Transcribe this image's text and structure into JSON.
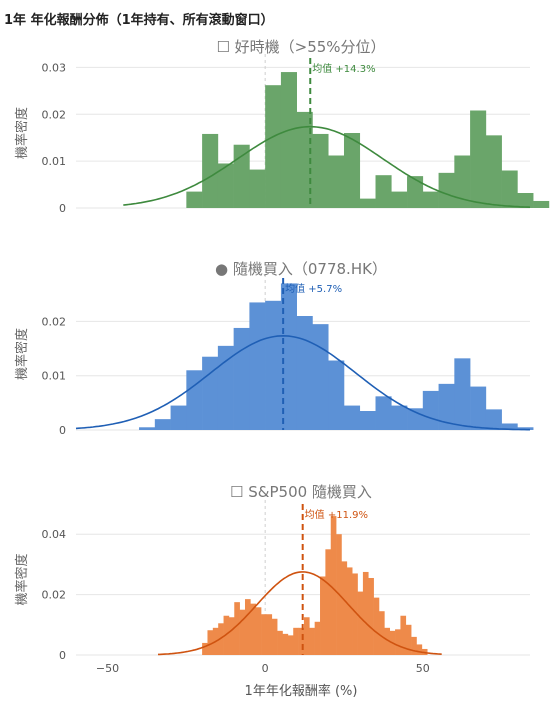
{
  "title": "1年 年化報酬分佈（1年持有、所有滾動窗口）",
  "x_axis": {
    "label": "1年年化報酬率 (%)",
    "ticks": [
      "−50",
      "0",
      "50"
    ],
    "tick_values": [
      -50,
      0,
      50
    ]
  },
  "chart_data": [
    {
      "type": "bar",
      "title": "☐ 好時機（>55%分位）",
      "ylabel": "機率密度",
      "color": "#3e8a3e",
      "fill_color": "#6aa56a",
      "ylim": [
        0,
        0.032
      ],
      "xlim": [
        -60,
        84
      ],
      "yticks": [
        0,
        0.01,
        0.02,
        0.03
      ],
      "ytick_labels": [
        "0",
        "0.01",
        "0.02",
        "0.03"
      ],
      "mean": 14.3,
      "mean_label": "均值 +14.3%",
      "curve": {
        "mean": 14.3,
        "sd": 23,
        "xmin": -45,
        "xmax": 84
      },
      "bars": {
        "x_start": -25,
        "width": 5,
        "values": [
          0.0035,
          0.0158,
          0.0095,
          0.0135,
          0.0082,
          0.0262,
          0.029,
          0.0205,
          0.0158,
          0.0112,
          0.016,
          0.002,
          0.007,
          0.0035,
          0.0068,
          0.0035,
          0.0075,
          0.0112,
          0.0208,
          0.0155,
          0.008,
          0.0032,
          0.0015
        ]
      }
    },
    {
      "type": "bar",
      "title": "● 隨機買入（0778.HK）",
      "ylabel": "機率密度",
      "color": "#1f5fb5",
      "fill_color": "#5c91d6",
      "ylim": [
        0,
        0.028
      ],
      "xlim": [
        -60,
        84
      ],
      "yticks": [
        0,
        0.01,
        0.02
      ],
      "ytick_labels": [
        "0",
        "0.01",
        "0.02"
      ],
      "mean": 5.7,
      "mean_label": "均值 +5.7%",
      "curve": {
        "mean": 5.7,
        "sd": 23,
        "xmin": -60,
        "xmax": 84
      },
      "bars": {
        "x_start": -40,
        "width": 5,
        "values": [
          0.0005,
          0.002,
          0.0045,
          0.011,
          0.0135,
          0.0155,
          0.0188,
          0.0235,
          0.0238,
          0.027,
          0.021,
          0.0195,
          0.0128,
          0.0045,
          0.0035,
          0.0062,
          0.0045,
          0.004,
          0.0072,
          0.0085,
          0.0132,
          0.008,
          0.0038,
          0.0012,
          0.0005
        ]
      }
    },
    {
      "type": "bar",
      "title": "☐ S&P500 隨機買入",
      "ylabel": "機率密度",
      "color": "#cf5310",
      "fill_color": "#ee8a4a",
      "ylim": [
        0,
        0.05
      ],
      "xlim": [
        -60,
        84
      ],
      "yticks": [
        0,
        0.02,
        0.04
      ],
      "ytick_labels": [
        "0",
        "0.02",
        "0.04"
      ],
      "mean": 11.9,
      "mean_label": "均值 +11.9%",
      "curve": {
        "mean": 11.9,
        "sd": 14.5,
        "xmin": -34,
        "xmax": 56
      },
      "bars": {
        "x_start": -20,
        "width": 1.7,
        "values": [
          0.004,
          0.0082,
          0.009,
          0.0105,
          0.013,
          0.0125,
          0.0175,
          0.015,
          0.0185,
          0.017,
          0.0158,
          0.0135,
          0.0135,
          0.012,
          0.008,
          0.007,
          0.0065,
          0.009,
          0.009,
          0.0125,
          0.009,
          0.011,
          0.026,
          0.035,
          0.046,
          0.04,
          0.031,
          0.029,
          0.027,
          0.021,
          0.0275,
          0.0255,
          0.019,
          0.0145,
          0.009,
          0.008,
          0.0085,
          0.013,
          0.01,
          0.006,
          0.0035,
          0.002
        ]
      }
    }
  ]
}
